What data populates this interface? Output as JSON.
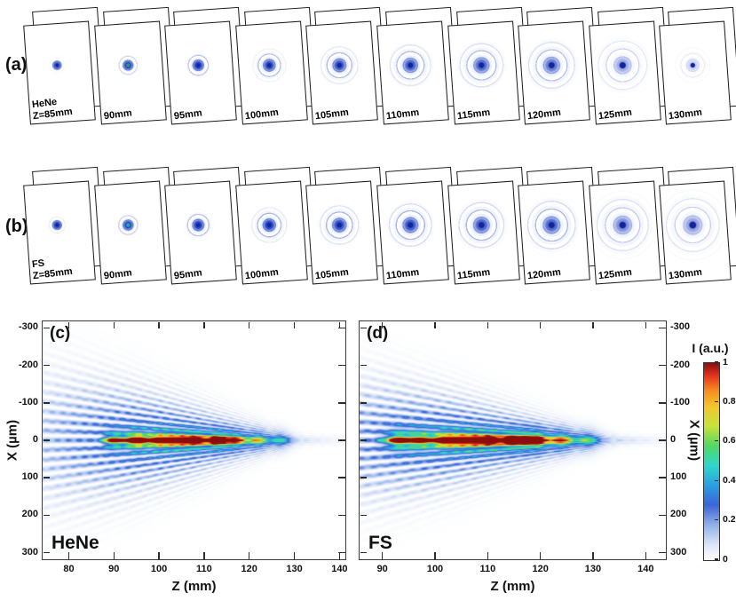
{
  "panels": {
    "a": {
      "tag": "(a)",
      "source": "HeNe",
      "frames": [
        {
          "label": "Z=85mm",
          "r": 9,
          "s": 0.95
        },
        {
          "label": "90mm",
          "r": 13,
          "s": 1.0,
          "core": "#17a35c"
        },
        {
          "label": "95mm",
          "r": 16,
          "s": 1.0
        },
        {
          "label": "100mm",
          "r": 20,
          "s": 0.95
        },
        {
          "label": "105mm",
          "r": 24,
          "s": 0.9
        },
        {
          "label": "110mm",
          "r": 28,
          "s": 0.85
        },
        {
          "label": "115mm",
          "r": 31,
          "s": 0.8
        },
        {
          "label": "120mm",
          "r": 34,
          "s": 0.72
        },
        {
          "label": "125mm",
          "r": 37,
          "s": 0.45
        },
        {
          "label": "130mm",
          "r": 22,
          "s": 0.25
        }
      ]
    },
    "b": {
      "tag": "(b)",
      "source": "FS",
      "frames": [
        {
          "label": "Z=85mm",
          "r": 10,
          "s": 1.0
        },
        {
          "label": "90mm",
          "r": 14,
          "s": 1.0,
          "core": "#0fb0a2"
        },
        {
          "label": "95mm",
          "r": 18,
          "s": 1.0
        },
        {
          "label": "100mm",
          "r": 22,
          "s": 1.0
        },
        {
          "label": "105mm",
          "r": 26,
          "s": 0.95
        },
        {
          "label": "110mm",
          "r": 30,
          "s": 0.9
        },
        {
          "label": "115mm",
          "r": 33,
          "s": 0.85
        },
        {
          "label": "120mm",
          "r": 36,
          "s": 0.8
        },
        {
          "label": "125mm",
          "r": 40,
          "s": 0.6
        },
        {
          "label": "130mm",
          "r": 42,
          "s": 0.5
        }
      ]
    }
  },
  "maps": {
    "c": {
      "tag": "(c)",
      "source": "HeNe",
      "xlabel": "Z (mm)",
      "ylabel": "X (µm)",
      "zmin": 74,
      "zmax": 141.5,
      "zticks": [
        80,
        90,
        100,
        110,
        120,
        130,
        140
      ],
      "xmin": -320,
      "xmax": 320,
      "xticks": [
        -300,
        -200,
        -100,
        0,
        100,
        200,
        300
      ],
      "model": {
        "zStart": 87,
        "zEnd": 136,
        "coreW": 9,
        "broad": [
          104,
          15,
          0.5
        ],
        "bumps": [
          [
            90,
            0.55
          ],
          [
            95,
            0.95
          ],
          [
            100,
            0.7
          ],
          [
            104,
            1.0
          ],
          [
            108,
            0.8
          ],
          [
            113,
            0.9
          ],
          [
            117,
            0.6
          ],
          [
            122,
            0.45
          ],
          [
            127,
            0.3
          ]
        ],
        "fPeriod": 0.42,
        "fSpread": 3.0,
        "fZc": 101,
        "fZw": 28,
        "fAmp": 0.5
      }
    },
    "d": {
      "tag": "(d)",
      "source": "FS",
      "xlabel": "Z (mm)",
      "ylabel": "X (µm)",
      "zmin": 85.5,
      "zmax": 144,
      "zticks": [
        90,
        100,
        110,
        120,
        130,
        140
      ],
      "xmin": -320,
      "xmax": 320,
      "xticks": [
        -300,
        -200,
        -100,
        0,
        100,
        200,
        300
      ],
      "model": {
        "zStart": 88.5,
        "zEnd": 139,
        "coreW": 10,
        "broad": [
          108,
          15,
          0.5
        ],
        "bumps": [
          [
            93,
            0.7
          ],
          [
            97,
            0.6
          ],
          [
            102,
            0.8
          ],
          [
            106,
            0.95
          ],
          [
            110,
            0.85
          ],
          [
            115,
            1.0
          ],
          [
            119,
            0.9
          ],
          [
            124,
            0.55
          ],
          [
            129,
            0.35
          ]
        ],
        "fPeriod": 0.46,
        "fSpread": 3.0,
        "fZc": 105,
        "fZw": 28,
        "fAmp": 0.5
      }
    }
  },
  "colorbar": {
    "title": "I (a.u.)",
    "ticks": [
      1,
      0.8,
      0.6,
      0.4,
      0.2,
      0
    ],
    "stops": [
      [
        0,
        "#ffffff"
      ],
      [
        0.08,
        "#dbe4f7"
      ],
      [
        0.18,
        "#8fb0e8"
      ],
      [
        0.28,
        "#3c64d8"
      ],
      [
        0.38,
        "#2b9fe0"
      ],
      [
        0.48,
        "#2fd6cd"
      ],
      [
        0.58,
        "#52d862"
      ],
      [
        0.68,
        "#c8e23c"
      ],
      [
        0.78,
        "#f3c52e"
      ],
      [
        0.86,
        "#f78c1e"
      ],
      [
        0.93,
        "#e8391f"
      ],
      [
        1,
        "#8c0d0d"
      ]
    ]
  },
  "chart_data": [
    {
      "type": "heatmap",
      "panel": "(c)",
      "title": "HeNe",
      "xlabel": "Z (mm)",
      "ylabel": "X (µm)",
      "x_range": [
        74,
        141.5
      ],
      "x_ticks": [
        80,
        90,
        100,
        110,
        120,
        130,
        140
      ],
      "y_range": [
        -320,
        320
      ],
      "y_ticks": [
        -300,
        -200,
        -100,
        0,
        100,
        200,
        300
      ],
      "value_label": "I (a.u.)",
      "value_range": [
        0,
        1
      ],
      "legend_position": "shared colorbar right",
      "summary": "Measured intensity I(X,Z) for HeNe laser: bright focal line along X=0 extending from Z≈87 mm to Z≈136 mm with peak (I≈1, red) hot spots near Z≈95, 104, 108 and 113 mm; faint blue conical interference fringes (I≈0.1–0.4) fan in from the left edge and converge toward an apex near Z≈136 mm."
    },
    {
      "type": "heatmap",
      "panel": "(d)",
      "title": "FS",
      "xlabel": "Z (mm)",
      "ylabel": "X (µm)",
      "x_range": [
        85.5,
        144
      ],
      "x_ticks": [
        90,
        100,
        110,
        120,
        130,
        140
      ],
      "y_range": [
        -320,
        320
      ],
      "y_ticks": [
        -300,
        -200,
        -100,
        0,
        100,
        200,
        300
      ],
      "value_label": "I (a.u.)",
      "value_range": [
        0,
        1
      ],
      "legend_position": "shared colorbar right",
      "summary": "Measured intensity I(X,Z) for fused-silica (FS) source: focal line along X=0 from Z≈88 mm to Z≈139 mm with hot spots near Z≈106, 110, 115 and 119 mm; blue conical fringes converge toward an apex near Z≈139 mm."
    },
    {
      "type": "image-sequence",
      "panel": "(a)",
      "title": "HeNe",
      "frame_labels": [
        "Z=85mm",
        "90mm",
        "95mm",
        "100mm",
        "105mm",
        "110mm",
        "115mm",
        "120mm",
        "125mm",
        "130mm"
      ],
      "summary": "Transverse beam profiles on tilted screens: compact central spot at Z=85 mm that develops growing concentric diffraction rings with distance, becoming large and faint by Z=125–130 mm."
    },
    {
      "type": "image-sequence",
      "panel": "(b)",
      "title": "FS",
      "frame_labels": [
        "Z=85mm",
        "90mm",
        "95mm",
        "100mm",
        "105mm",
        "110mm",
        "115mm",
        "120mm",
        "125mm",
        "130mm"
      ],
      "summary": "Transverse beam profiles for the FS source: stronger central spot with ring systems that expand with distance and remain visible with radial structure up to Z=130 mm."
    }
  ]
}
